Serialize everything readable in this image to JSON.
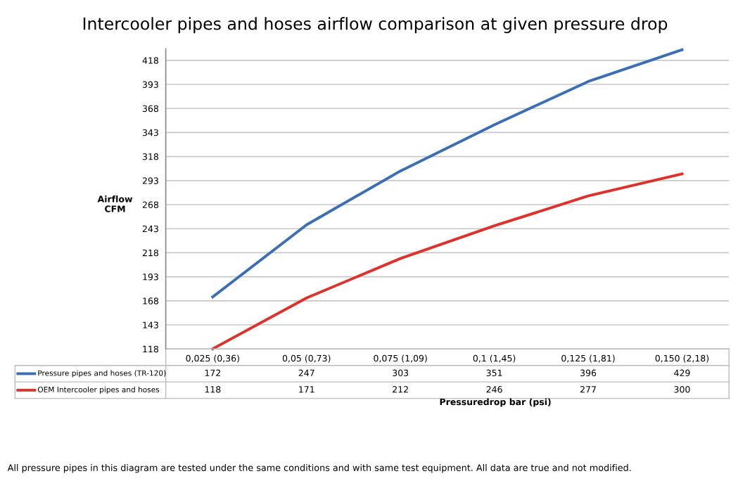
{
  "chart_data": {
    "type": "line",
    "title": "Intercooler pipes and hoses airflow comparison at given pressure drop",
    "xlabel": "Pressuredrop bar (psi)",
    "ylabel": "Airflow\nCFM",
    "categories": [
      "0,025 (0,36)",
      "0,05 (0,73)",
      "0,075 (1,09)",
      "0,1 (1,45)",
      "0,125 (1,81)",
      "0,150 (2,18)"
    ],
    "series": [
      {
        "name": "Pressure pipes and hoses (TR-120)",
        "color": "#3a6fb5",
        "values": [
          172,
          247,
          303,
          351,
          396,
          429
        ]
      },
      {
        "name": "OEM Intercooler pipes and hoses",
        "color": "#e0302a",
        "values": [
          118,
          171,
          212,
          246,
          277,
          300
        ]
      }
    ],
    "ylim": [
      118,
      430
    ],
    "yticks": [
      118,
      143,
      168,
      193,
      218,
      243,
      268,
      293,
      318,
      343,
      368,
      393,
      418
    ],
    "grid": "y",
    "legend": "bottom",
    "data_labels": true,
    "marker": "none",
    "line_style": "solid",
    "annotations": [
      "All pressure pipes in this diagram are tested under the same conditions and with same test equipment. All data are true and not modified."
    ]
  }
}
